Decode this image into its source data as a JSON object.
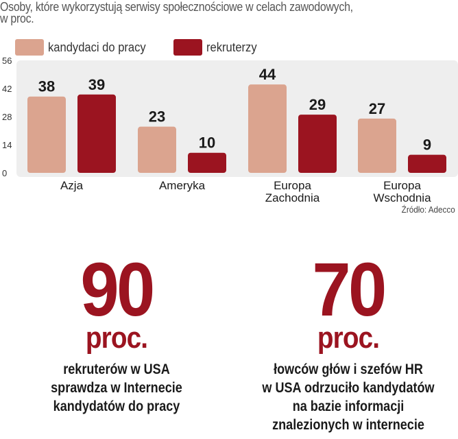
{
  "title_lines": [
    "Osoby, które wykorzystują serwisy społecznościowe  w celach zawodowych,",
    "w proc."
  ],
  "legend": {
    "candidates": "kandydaci do pracy",
    "recruiters": "rekruterzy"
  },
  "colors": {
    "candidates": "#dba48f",
    "recruiters": "#9b1420",
    "panel": "#eeeeee",
    "accent": "#9b1420"
  },
  "chart_data": {
    "type": "bar",
    "categories": [
      "Azja",
      "Ameryka",
      "Europa\nZachodnia",
      "Europa\nWschodnia"
    ],
    "series": [
      {
        "name": "kandydaci do pracy",
        "values": [
          38,
          23,
          44,
          27
        ]
      },
      {
        "name": "rekruterzy",
        "values": [
          39,
          10,
          29,
          9
        ]
      }
    ],
    "y_ticks": [
      0,
      14,
      28,
      42,
      56
    ],
    "ylim": [
      0,
      56
    ],
    "grid": false,
    "legend_position": "top-left",
    "data_labels": true
  },
  "source": "Źródło: Adecco",
  "stats": [
    {
      "number": "90",
      "unit": "proc.",
      "lines": [
        "rekruterów w USA",
        "sprawdza w Internecie",
        "kandydatów do pracy"
      ]
    },
    {
      "number": "70",
      "unit": "proc.",
      "lines": [
        "łowców głów i szefów HR",
        "w USA odrzuciło kandydatów",
        "na bazie informacji",
        "znalezionych w internecie"
      ]
    }
  ]
}
